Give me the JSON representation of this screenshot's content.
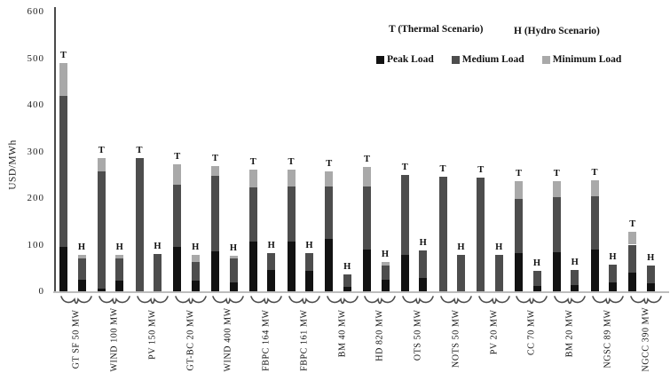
{
  "chart_data": {
    "type": "bar",
    "stacked": true,
    "ylabel": "USD/MWh",
    "ylim": [
      0,
      600
    ],
    "yticks": [
      0,
      100,
      200,
      300,
      400,
      500,
      600
    ],
    "grid": false,
    "legend_position": "top-right-inside",
    "scenario_note": {
      "thermal": "T (Thermal Scenario)",
      "hydro": "H (Hydro Scenario)"
    },
    "series_labels": {
      "thermal": "T",
      "hydro": "H"
    },
    "legend": [
      {
        "label": "Peak Load",
        "color": "#121212"
      },
      {
        "label": "Medium Load",
        "color": "#4d4d4d"
      },
      {
        "label": "Minimum Load",
        "color": "#a9a9a9"
      }
    ],
    "categories": [
      "GT SF 50 MW",
      "WIND 100 MW",
      "PV 150 MW",
      "GT-BC 20 MW",
      "WIND 400 MW",
      "FBPC 164 MW",
      "FBPC 161 MW",
      "BM 40 MW",
      "HD 820 MW",
      "OTS 50 MW",
      "NOTS 50 MW",
      "PV 20 MW",
      "CC 70 MW",
      "BM 20 MW",
      "NGSC 89 MW",
      "NGCC 390 MW"
    ],
    "bars": [
      {
        "category": "GT SF 50 MW",
        "T": {
          "peak": 95,
          "medium": 325,
          "minimum": 70
        },
        "H": {
          "peak": 25,
          "medium": 45,
          "minimum": 8
        }
      },
      {
        "category": "WIND 100 MW",
        "T": {
          "peak": 5,
          "medium": 253,
          "minimum": 27
        },
        "H": {
          "peak": 22,
          "medium": 48,
          "minimum": 8
        }
      },
      {
        "category": "PV 150 MW",
        "T": {
          "peak": 0,
          "medium": 285,
          "minimum": 0
        },
        "H": {
          "peak": 0,
          "medium": 80,
          "minimum": 0
        }
      },
      {
        "category": "GT-BC 20 MW",
        "T": {
          "peak": 95,
          "medium": 133,
          "minimum": 44
        },
        "H": {
          "peak": 22,
          "medium": 41,
          "minimum": 16
        }
      },
      {
        "category": "WIND 400 MW",
        "T": {
          "peak": 85,
          "medium": 162,
          "minimum": 21
        },
        "H": {
          "peak": 19,
          "medium": 52,
          "minimum": 5
        }
      },
      {
        "category": "FBPC 164 MW",
        "T": {
          "peak": 107,
          "medium": 116,
          "minimum": 38
        },
        "H": {
          "peak": 46,
          "medium": 36,
          "minimum": 0
        }
      },
      {
        "category": "FBPC 161 MW",
        "T": {
          "peak": 106,
          "medium": 118,
          "minimum": 37
        },
        "H": {
          "peak": 44,
          "medium": 37,
          "minimum": 0
        }
      },
      {
        "category": "BM 40 MW",
        "T": {
          "peak": 113,
          "medium": 111,
          "minimum": 34
        },
        "H": {
          "peak": 10,
          "medium": 27,
          "minimum": 0
        }
      },
      {
        "category": "HD 820 MW",
        "T": {
          "peak": 89,
          "medium": 135,
          "minimum": 43
        },
        "H": {
          "peak": 24,
          "medium": 32,
          "minimum": 7
        }
      },
      {
        "category": "OTS 50 MW",
        "T": {
          "peak": 79,
          "medium": 171,
          "minimum": 0
        },
        "H": {
          "peak": 29,
          "medium": 58,
          "minimum": 0
        }
      },
      {
        "category": "NOTS 50 MW",
        "T": {
          "peak": 0,
          "medium": 245,
          "minimum": 0
        },
        "H": {
          "peak": 0,
          "medium": 79,
          "minimum": 0
        }
      },
      {
        "category": "PV 20 MW",
        "T": {
          "peak": 0,
          "medium": 244,
          "minimum": 0
        },
        "H": {
          "peak": 0,
          "medium": 78,
          "minimum": 0
        }
      },
      {
        "category": "CC 70 MW",
        "T": {
          "peak": 82,
          "medium": 117,
          "minimum": 38
        },
        "H": {
          "peak": 11,
          "medium": 33,
          "minimum": 0
        }
      },
      {
        "category": "BM 20 MW",
        "T": {
          "peak": 84,
          "medium": 117,
          "minimum": 36
        },
        "H": {
          "peak": 13,
          "medium": 33,
          "minimum": 0
        }
      },
      {
        "category": "NGSC 89 MW",
        "T": {
          "peak": 90,
          "medium": 113,
          "minimum": 36
        },
        "H": {
          "peak": 19,
          "medium": 38,
          "minimum": 0
        }
      },
      {
        "category": "NGCC 390 MW",
        "T": {
          "peak": 40,
          "medium": 60,
          "minimum": 28
        },
        "H": {
          "peak": 18,
          "medium": 37,
          "minimum": 0
        }
      }
    ]
  }
}
